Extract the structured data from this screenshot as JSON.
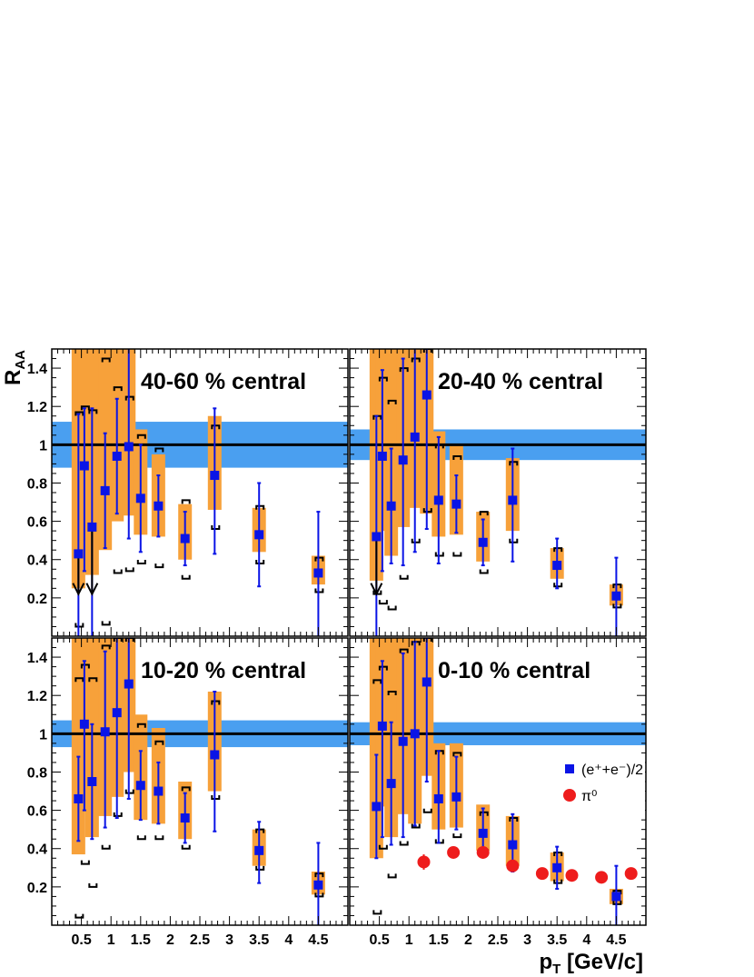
{
  "chart_data": {
    "type": "scatter",
    "ylabel": {
      "main": "R",
      "sub": "AA"
    },
    "xlabel": {
      "main": "p",
      "sub": "T",
      "rest": " [GeV/c]"
    },
    "xlim": [
      0,
      5
    ],
    "ylim": [
      0,
      1.5
    ],
    "x_ticks": [
      "0.5",
      "1",
      "1.5",
      "2",
      "2.5",
      "3",
      "3.5",
      "4",
      "4.5"
    ],
    "x_tick_values": [
      0.5,
      1,
      1.5,
      2,
      2.5,
      3,
      3.5,
      4,
      4.5
    ],
    "y_ticks": [
      "0.2",
      "0.4",
      "0.6",
      "0.8",
      "1",
      "1.2",
      "1.4"
    ],
    "y_tick_values": [
      0.2,
      0.4,
      0.6,
      0.8,
      1.0,
      1.2,
      1.4
    ],
    "reference_line": 1,
    "colors": {
      "series": "#0a14e6",
      "syst_band": "#f7a13a",
      "norm_band": "#4a9ff0",
      "pi0": "#ee1c1c",
      "ref_line": "#000000"
    },
    "legend": {
      "panel": "0-10",
      "entries": [
        {
          "label": "(e⁺+e⁻)/2",
          "color": "#0a14e6",
          "marker": "square"
        },
        {
          "label": "π⁰",
          "color": "#ee1c1c",
          "marker": "circle"
        }
      ]
    },
    "panels": [
      {
        "id": "40-60",
        "title": "40-60 % central",
        "norm_band": [
          0.88,
          1.12
        ],
        "series": [
          {
            "x": 0.45,
            "y": 0.43,
            "err_lo": 0.43,
            "err_hi": 0.73,
            "syst_lo": 0.25,
            "syst_hi": 1.5,
            "cap_lo": 0.05,
            "cap_hi": 1.17,
            "arrow": true
          },
          {
            "x": 0.55,
            "y": 0.89,
            "err_lo": 0.55,
            "err_hi": 0.3,
            "syst_lo": 0.5,
            "syst_hi": 1.5,
            "cap_lo": -0.1,
            "cap_hi": 1.2
          },
          {
            "x": 0.68,
            "y": 0.57,
            "err_lo": 0.57,
            "err_hi": 0.62,
            "syst_lo": 0.32,
            "syst_hi": 1.5,
            "cap_lo": -0.1,
            "cap_hi": 1.18,
            "arrow": true
          },
          {
            "x": 0.9,
            "y": 0.76,
            "err_lo": 0.3,
            "err_hi": 0.3,
            "syst_lo": 0.45,
            "syst_hi": 1.5,
            "cap_lo": 0.06,
            "cap_hi": 1.45
          },
          {
            "x": 1.1,
            "y": 0.94,
            "err_lo": 0.3,
            "err_hi": 0.3,
            "syst_lo": 0.6,
            "syst_hi": 1.5,
            "cap_lo": 0.33,
            "cap_hi": 1.3
          },
          {
            "x": 1.3,
            "y": 0.99,
            "err_lo": 0.48,
            "err_hi": 0.55,
            "syst_lo": 0.63,
            "syst_hi": 1.5,
            "cap_lo": 0.34,
            "cap_hi": 1.25
          },
          {
            "x": 1.5,
            "y": 0.72,
            "err_lo": 0.28,
            "err_hi": 0.28,
            "syst_lo": 0.53,
            "syst_hi": 1.08,
            "cap_lo": 0.38,
            "cap_hi": 1.05
          },
          {
            "x": 1.8,
            "y": 0.68,
            "err_lo": 0.16,
            "err_hi": 0.16,
            "syst_lo": 0.52,
            "syst_hi": 0.95,
            "cap_lo": 0.36,
            "cap_hi": 0.98
          },
          {
            "x": 2.25,
            "y": 0.51,
            "err_lo": 0.14,
            "err_hi": 0.14,
            "syst_lo": 0.4,
            "syst_hi": 0.69,
            "cap_lo": 0.3,
            "cap_hi": 0.71
          },
          {
            "x": 2.75,
            "y": 0.84,
            "err_lo": 0.41,
            "err_hi": 0.35,
            "syst_lo": 0.66,
            "syst_hi": 1.15,
            "cap_lo": 0.56,
            "cap_hi": 1.1
          },
          {
            "x": 3.5,
            "y": 0.53,
            "err_lo": 0.27,
            "err_hi": 0.27,
            "syst_lo": 0.44,
            "syst_hi": 0.67,
            "cap_lo": 0.38,
            "cap_hi": 0.68
          },
          {
            "x": 4.5,
            "y": 0.33,
            "err_lo": 0.33,
            "err_hi": 0.32,
            "syst_lo": 0.27,
            "syst_hi": 0.42,
            "cap_lo": 0.23,
            "cap_hi": 0.41
          }
        ],
        "pi0": []
      },
      {
        "id": "20-40",
        "title": "20-40 % central",
        "norm_band": [
          0.92,
          1.08
        ],
        "series": [
          {
            "x": 0.45,
            "y": 0.52,
            "err_lo": 0.52,
            "err_hi": 0.63,
            "syst_lo": 0.29,
            "syst_hi": 1.5,
            "cap_lo": 0.22,
            "cap_hi": 1.15,
            "arrow": true
          },
          {
            "x": 0.55,
            "y": 0.94,
            "err_lo": 0.6,
            "err_hi": 0.45,
            "syst_lo": 0.55,
            "syst_hi": 1.5,
            "cap_lo": 0.17,
            "cap_hi": 1.35
          },
          {
            "x": 0.7,
            "y": 0.68,
            "err_lo": 0.3,
            "err_hi": 0.3,
            "syst_lo": 0.42,
            "syst_hi": 1.5,
            "cap_lo": 0.14,
            "cap_hi": 1.23
          },
          {
            "x": 0.9,
            "y": 0.92,
            "err_lo": 0.55,
            "err_hi": 0.53,
            "syst_lo": 0.57,
            "syst_hi": 1.5,
            "cap_lo": 0.3,
            "cap_hi": 1.4
          },
          {
            "x": 1.1,
            "y": 1.04,
            "err_lo": 0.6,
            "err_hi": 0.48,
            "syst_lo": 0.67,
            "syst_hi": 1.5,
            "cap_lo": 0.49,
            "cap_hi": 1.45
          },
          {
            "x": 1.3,
            "y": 1.26,
            "err_lo": 0.7,
            "err_hi": 0.4,
            "syst_lo": 0.64,
            "syst_hi": 1.5,
            "cap_lo": 0.65,
            "cap_hi": 1.5
          },
          {
            "x": 1.5,
            "y": 0.71,
            "err_lo": 0.33,
            "err_hi": 0.33,
            "syst_lo": 0.52,
            "syst_hi": 1.07,
            "cap_lo": 0.42,
            "cap_hi": 1.0
          },
          {
            "x": 1.8,
            "y": 0.69,
            "err_lo": 0.15,
            "err_hi": 0.15,
            "syst_lo": 0.53,
            "syst_hi": 1.0,
            "cap_lo": 0.42,
            "cap_hi": 0.94
          },
          {
            "x": 2.25,
            "y": 0.49,
            "err_lo": 0.12,
            "err_hi": 0.12,
            "syst_lo": 0.39,
            "syst_hi": 0.65,
            "cap_lo": 0.33,
            "cap_hi": 0.65
          },
          {
            "x": 2.75,
            "y": 0.71,
            "err_lo": 0.32,
            "err_hi": 0.27,
            "syst_lo": 0.55,
            "syst_hi": 0.93,
            "cap_lo": 0.49,
            "cap_hi": 0.91
          },
          {
            "x": 3.5,
            "y": 0.37,
            "err_lo": 0.12,
            "err_hi": 0.14,
            "syst_lo": 0.3,
            "syst_hi": 0.46,
            "cap_lo": 0.26,
            "cap_hi": 0.46
          },
          {
            "x": 4.5,
            "y": 0.21,
            "err_lo": 0.21,
            "err_hi": 0.2,
            "syst_lo": 0.16,
            "syst_hi": 0.27,
            "cap_lo": 0.15,
            "cap_hi": 0.27
          }
        ],
        "pi0": []
      },
      {
        "id": "10-20",
        "title": "10-20 % central",
        "norm_band": [
          0.93,
          1.07
        ],
        "series": [
          {
            "x": 0.45,
            "y": 0.66,
            "err_lo": 0.22,
            "err_hi": 0.22,
            "syst_lo": 0.37,
            "syst_hi": 1.5,
            "cap_lo": 0.04,
            "cap_hi": 1.29
          },
          {
            "x": 0.55,
            "y": 1.05,
            "err_lo": 0.45,
            "err_hi": 0.33,
            "syst_lo": 0.63,
            "syst_hi": 1.5,
            "cap_lo": 0.32,
            "cap_hi": 1.36
          },
          {
            "x": 0.68,
            "y": 0.75,
            "err_lo": 0.3,
            "err_hi": 0.3,
            "syst_lo": 0.46,
            "syst_hi": 1.5,
            "cap_lo": 0.2,
            "cap_hi": 1.29
          },
          {
            "x": 0.9,
            "y": 1.01,
            "err_lo": 0.5,
            "err_hi": 0.42,
            "syst_lo": 0.57,
            "syst_hi": 1.5,
            "cap_lo": 0.4,
            "cap_hi": 1.46
          },
          {
            "x": 1.1,
            "y": 1.11,
            "err_lo": 0.55,
            "err_hi": 0.4,
            "syst_lo": 0.67,
            "syst_hi": 1.5,
            "cap_lo": 0.57,
            "cap_hi": 1.5
          },
          {
            "x": 1.3,
            "y": 1.26,
            "err_lo": 0.6,
            "err_hi": 0.3,
            "syst_lo": 0.8,
            "syst_hi": 1.5,
            "cap_lo": 0.69,
            "cap_hi": 1.5
          },
          {
            "x": 1.5,
            "y": 0.73,
            "err_lo": 0.18,
            "err_hi": 0.18,
            "syst_lo": 0.55,
            "syst_hi": 1.1,
            "cap_lo": 0.45,
            "cap_hi": 1.05
          },
          {
            "x": 1.8,
            "y": 0.7,
            "err_lo": 0.17,
            "err_hi": 0.15,
            "syst_lo": 0.53,
            "syst_hi": 1.03,
            "cap_lo": 0.45,
            "cap_hi": 0.96
          },
          {
            "x": 2.25,
            "y": 0.56,
            "err_lo": 0.13,
            "err_hi": 0.13,
            "syst_lo": 0.45,
            "syst_hi": 0.75,
            "cap_lo": 0.4,
            "cap_hi": 0.72
          },
          {
            "x": 2.75,
            "y": 0.89,
            "err_lo": 0.4,
            "err_hi": 0.33,
            "syst_lo": 0.7,
            "syst_hi": 1.22,
            "cap_lo": 0.66,
            "cap_hi": 1.17
          },
          {
            "x": 3.5,
            "y": 0.39,
            "err_lo": 0.17,
            "err_hi": 0.15,
            "syst_lo": 0.31,
            "syst_hi": 0.5,
            "cap_lo": 0.29,
            "cap_hi": 0.5
          },
          {
            "x": 4.5,
            "y": 0.21,
            "err_lo": 0.21,
            "err_hi": 0.22,
            "syst_lo": 0.16,
            "syst_hi": 0.28,
            "cap_lo": 0.15,
            "cap_hi": 0.27
          }
        ],
        "pi0": []
      },
      {
        "id": "0-10",
        "title": "0-10 % central",
        "norm_band": [
          0.94,
          1.06
        ],
        "series": [
          {
            "x": 0.45,
            "y": 0.62,
            "err_lo": 0.27,
            "err_hi": 0.27,
            "syst_lo": 0.35,
            "syst_hi": 1.5,
            "cap_lo": 0.06,
            "cap_hi": 1.28
          },
          {
            "x": 0.55,
            "y": 1.04,
            "err_lo": 0.58,
            "err_hi": 0.34,
            "syst_lo": 0.62,
            "syst_hi": 1.5,
            "cap_lo": 0.4,
            "cap_hi": 1.35
          },
          {
            "x": 0.7,
            "y": 0.74,
            "err_lo": 0.32,
            "err_hi": 0.32,
            "syst_lo": 0.46,
            "syst_hi": 1.5,
            "cap_lo": 0.25,
            "cap_hi": 1.22
          },
          {
            "x": 0.9,
            "y": 0.96,
            "err_lo": 0.5,
            "err_hi": 0.46,
            "syst_lo": 0.58,
            "syst_hi": 1.5,
            "cap_lo": 0.42,
            "cap_hi": 1.44
          },
          {
            "x": 1.1,
            "y": 1.0,
            "err_lo": 0.48,
            "err_hi": 0.48,
            "syst_lo": 0.53,
            "syst_hi": 1.5,
            "cap_lo": 0.51,
            "cap_hi": 1.48
          },
          {
            "x": 1.3,
            "y": 1.27,
            "err_lo": 0.52,
            "err_hi": 0.23,
            "syst_lo": 0.78,
            "syst_hi": 1.5,
            "cap_lo": 0.59,
            "cap_hi": 1.5
          },
          {
            "x": 1.5,
            "y": 0.66,
            "err_lo": 0.23,
            "err_hi": 0.25,
            "syst_lo": 0.5,
            "syst_hi": 0.95,
            "cap_lo": 0.43,
            "cap_hi": 0.91
          },
          {
            "x": 1.8,
            "y": 0.67,
            "err_lo": 0.17,
            "err_hi": 0.21,
            "syst_lo": 0.51,
            "syst_hi": 0.95,
            "cap_lo": 0.46,
            "cap_hi": 0.9
          },
          {
            "x": 2.25,
            "y": 0.48,
            "err_lo": 0.11,
            "err_hi": 0.13,
            "syst_lo": 0.39,
            "syst_hi": 0.63,
            "cap_lo": 0.38,
            "cap_hi": 0.59
          },
          {
            "x": 2.75,
            "y": 0.42,
            "err_lo": 0.14,
            "err_hi": 0.16,
            "syst_lo": 0.31,
            "syst_hi": 0.57,
            "cap_lo": 0.3,
            "cap_hi": 0.56
          },
          {
            "x": 3.5,
            "y": 0.3,
            "err_lo": 0.11,
            "err_hi": 0.11,
            "syst_lo": 0.23,
            "syst_hi": 0.38,
            "cap_lo": 0.22,
            "cap_hi": 0.38
          },
          {
            "x": 4.5,
            "y": 0.15,
            "err_lo": 0.15,
            "err_hi": 0.16,
            "syst_lo": 0.11,
            "syst_hi": 0.19,
            "cap_lo": 0.11,
            "cap_hi": 0.18
          }
        ],
        "pi0": [
          {
            "x": 1.25,
            "y": 0.33,
            "err_lo": 0.04,
            "err_hi": 0.04
          },
          {
            "x": 1.75,
            "y": 0.38,
            "err_lo": 0.03,
            "err_hi": 0.03
          },
          {
            "x": 2.25,
            "y": 0.38,
            "err_lo": 0.03,
            "err_hi": 0.03
          },
          {
            "x": 2.75,
            "y": 0.31,
            "err_lo": 0.03,
            "err_hi": 0.03
          },
          {
            "x": 3.25,
            "y": 0.27,
            "err_lo": 0.03,
            "err_hi": 0.03
          },
          {
            "x": 3.75,
            "y": 0.26,
            "err_lo": 0.03,
            "err_hi": 0.03
          },
          {
            "x": 4.25,
            "y": 0.25,
            "err_lo": 0.03,
            "err_hi": 0.03
          },
          {
            "x": 4.75,
            "y": 0.27,
            "err_lo": 0.03,
            "err_hi": 0.03
          }
        ]
      }
    ]
  }
}
